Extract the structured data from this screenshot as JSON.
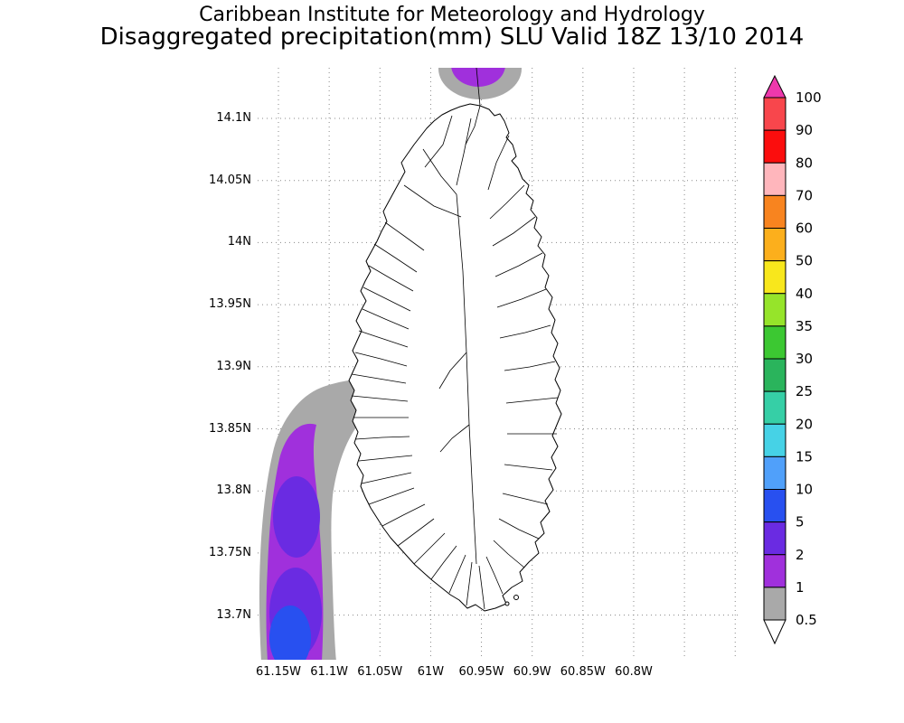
{
  "title": {
    "line1": "Caribbean Institute for Meteorology and Hydrology",
    "line2": "Disaggregated precipitation(mm) SLU Valid 18Z 13/10 2014"
  },
  "axes": {
    "lat_labels": [
      "14.1N",
      "14.05N",
      "14N",
      "13.95N",
      "13.9N",
      "13.85N",
      "13.8N",
      "13.75N",
      "13.7N"
    ],
    "lon_labels": [
      "61.15W",
      "61.1W",
      "61.05W",
      "61W",
      "60.95W",
      "60.9W",
      "60.85W",
      "60.8W"
    ]
  },
  "colorbar": {
    "tick_labels": [
      "100",
      "90",
      "80",
      "70",
      "60",
      "50",
      "40",
      "35",
      "30",
      "25",
      "20",
      "15",
      "10",
      "5",
      "2",
      "1",
      "0.5"
    ],
    "arrow_top_color": "#ee38ac",
    "arrow_bottom_color": "#ffffff",
    "segment_colors_top_to_bottom": [
      "#f8464c",
      "#fb0d0d",
      "#ffb6bc",
      "#f8841f",
      "#fcaf1c",
      "#f8e71c",
      "#96e42a",
      "#3cc832",
      "#2ab45c",
      "#36cfa6",
      "#46d2e6",
      "#50a0fa",
      "#2850f0",
      "#6a2be2",
      "#a030dc",
      "#a9a9a9"
    ]
  },
  "map_colors": {
    "grid": "#888888",
    "coast": "#000000",
    "shade_0p5_1": "#a9a9a9",
    "shade_1_2": "#a030dc",
    "shade_2_5": "#6a2be2",
    "shade_5_10": "#2850f0"
  },
  "chart_data": {
    "type": "heatmap",
    "title": "Disaggregated precipitation (mm), SLU (Saint Lucia), valid 18Z 13/10 2014",
    "units": "mm",
    "lat_range": [
      "13.7N",
      "14.1N"
    ],
    "lon_range": [
      "61.15W",
      "60.8W"
    ],
    "levels_mm": [
      0.5,
      1,
      2,
      5,
      10,
      15,
      20,
      25,
      30,
      35,
      40,
      50,
      60,
      70,
      80,
      90,
      100
    ],
    "regions": [
      {
        "area": "offshore, west of Saint Lucia island, about 61.15W-61.08W and 13.67N-13.86N",
        "levels_present": [
          "0.5-1 (gray)",
          "1-2 (purple)",
          "2-5 (violet)",
          "5-10 (blue)"
        ],
        "max_level_mm": "5-10"
      },
      {
        "area": "top edge of domain near 60.95W, about 14.14N",
        "levels_present": [
          "0.5-1 (gray)",
          "1-2 (purple)"
        ],
        "max_level_mm": "1-2"
      },
      {
        "area": "Saint Lucia island interior (watershed boundary map shown), no shading",
        "levels_present": [],
        "max_level_mm": "< 0.5"
      }
    ]
  }
}
